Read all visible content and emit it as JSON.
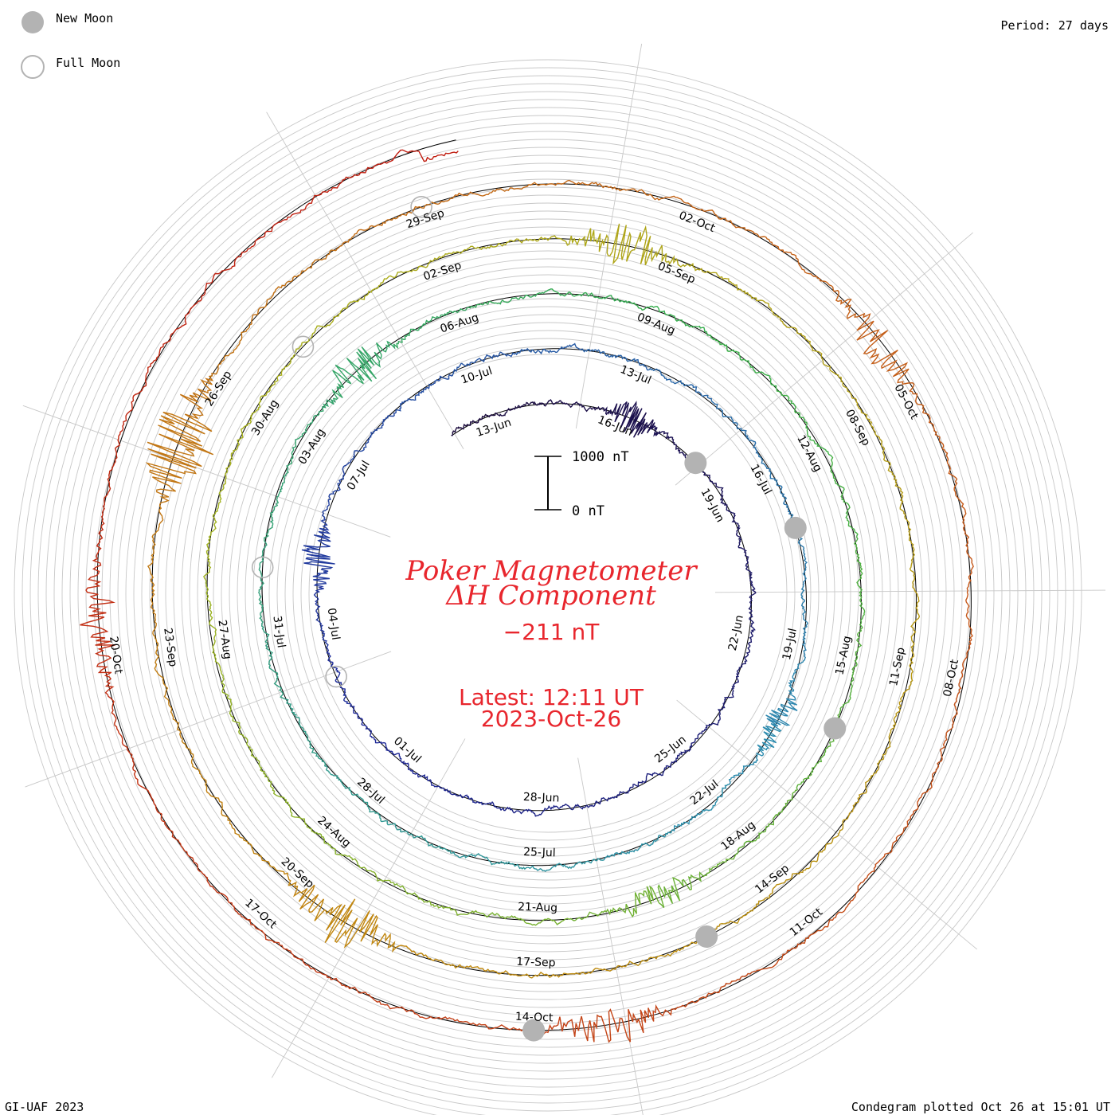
{
  "legend": {
    "new_moon_label": "New Moon",
    "full_moon_label": "Full Moon",
    "new_moon_color": "#b3b3b3",
    "full_moon_color": "#b3b3b3"
  },
  "period_label": "Period: 27 days",
  "footer_left": "GI-UAF 2023",
  "footer_right": "Condegram plotted Oct 26 at 15:01 UT",
  "title": {
    "line1": "Poker Magnetometer",
    "line2": "ΔH Component",
    "value": "−211 nT",
    "latest": "Latest: 12:11 UT",
    "date": "2023-Oct-26"
  },
  "scale_bar": {
    "top_label": "1000 nT",
    "bottom_label": "0 nT",
    "top_value_nT": 1000,
    "bottom_value_nT": 0
  },
  "colors": {
    "title": "#e8262d",
    "grid": "#c8c8c8",
    "baseline": "#000000"
  },
  "chart_data": {
    "type": "line",
    "subtype": "condegram (spiral time series)",
    "period_days": 27,
    "start": "2023-06-12",
    "end": "2023-10-26",
    "units": "nT",
    "latest_value_nT": -211,
    "turns": [
      {
        "period": "2023-06-12 to 2023-07-09",
        "color": "#1a0a3c"
      },
      {
        "period": "2023-07-09 to 2023-08-05",
        "color": "#1f2a9a"
      },
      {
        "period": "2023-08-05 to 2023-09-01",
        "color": "#2e8fb0"
      },
      {
        "period": "2023-09-01 to 2023-09-28",
        "color": "#39b04a"
      },
      {
        "period": "2023-09-28 to 2023-10-26",
        "color": "#a8b21e"
      }
    ],
    "outer_tail_colors": [
      "#c0880f",
      "#c5561a",
      "#c01a10"
    ],
    "date_labels": [
      "13-Jun",
      "16-Jun",
      "19-Jun",
      "22-Jun",
      "25-Jun",
      "28-Jun",
      "01-Jul",
      "04-Jul",
      "07-Jul",
      "10-Jul",
      "13-Jul",
      "16-Jul",
      "19-Jul",
      "22-Jul",
      "25-Jul",
      "28-Jul",
      "31-Jul",
      "03-Aug",
      "06-Aug",
      "09-Aug",
      "12-Aug",
      "15-Aug",
      "18-Aug",
      "21-Aug",
      "24-Aug",
      "27-Aug",
      "30-Aug",
      "02-Sep",
      "05-Sep",
      "08-Sep",
      "11-Sep",
      "14-Sep",
      "17-Sep",
      "20-Sep",
      "23-Sep",
      "26-Sep",
      "29-Sep",
      "02-Oct",
      "05-Oct",
      "08-Oct",
      "11-Oct",
      "14-Oct",
      "17-Oct",
      "20-Oct"
    ],
    "disturbances": [
      {
        "date": "2023-06-16",
        "amplitude_nT": 350
      },
      {
        "date": "2023-07-05",
        "amplitude_nT": 300
      },
      {
        "date": "2023-07-20",
        "amplitude_nT": 250
      },
      {
        "date": "2023-08-04",
        "amplitude_nT": 400
      },
      {
        "date": "2023-08-19",
        "amplitude_nT": 300
      },
      {
        "date": "2023-09-04",
        "amplitude_nT": 450
      },
      {
        "date": "2023-09-19",
        "amplitude_nT": 550
      },
      {
        "date": "2023-09-25",
        "amplitude_nT": 700
      },
      {
        "date": "2023-10-04",
        "amplitude_nT": 350
      },
      {
        "date": "2023-10-13",
        "amplitude_nT": 400
      },
      {
        "date": "2023-10-20",
        "amplitude_nT": 350
      }
    ],
    "new_moons": [
      "2023-06-18",
      "2023-07-17",
      "2023-08-16",
      "2023-09-15",
      "2023-10-14"
    ],
    "full_moons": [
      "2023-07-03",
      "2023-08-01",
      "2023-08-31",
      "2023-09-29"
    ]
  }
}
